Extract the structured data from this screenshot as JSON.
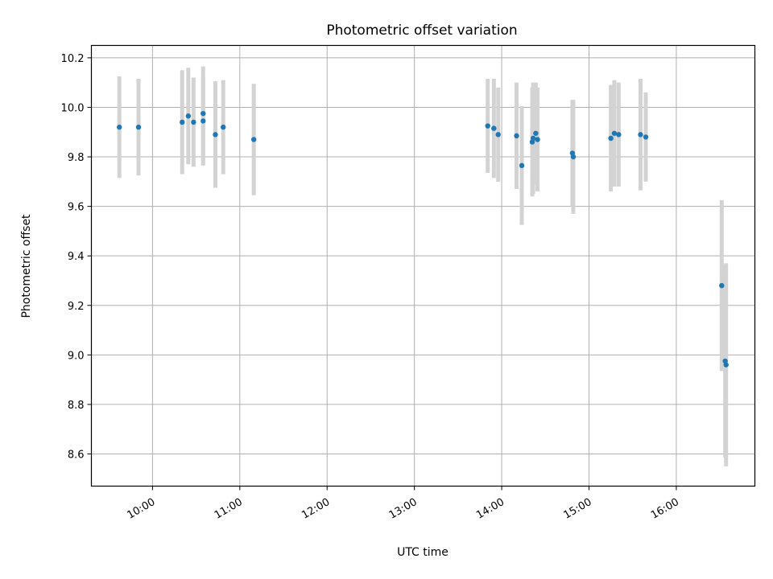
{
  "chart_data": {
    "type": "scatter",
    "title": "Photometric offset variation",
    "xlabel": "UTC time",
    "ylabel": "Photometric offset",
    "grid": true,
    "xlim": [
      9.3,
      16.9
    ],
    "ylim": [
      8.47,
      10.25
    ],
    "x_ticks": [
      {
        "value": 10,
        "label": "10:00"
      },
      {
        "value": 11,
        "label": "11:00"
      },
      {
        "value": 12,
        "label": "12:00"
      },
      {
        "value": 13,
        "label": "13:00"
      },
      {
        "value": 14,
        "label": "14:00"
      },
      {
        "value": 15,
        "label": "15:00"
      },
      {
        "value": 16,
        "label": "16:00"
      }
    ],
    "y_ticks": [
      {
        "value": 8.6,
        "label": "8.6"
      },
      {
        "value": 8.8,
        "label": "8.8"
      },
      {
        "value": 9.0,
        "label": "9.0"
      },
      {
        "value": 9.2,
        "label": "9.2"
      },
      {
        "value": 9.4,
        "label": "9.4"
      },
      {
        "value": 9.6,
        "label": "9.6"
      },
      {
        "value": 9.8,
        "label": "9.8"
      },
      {
        "value": 10.0,
        "label": "10.0"
      },
      {
        "value": 10.2,
        "label": "10.2"
      }
    ],
    "x_units": "hours UTC",
    "colors": {
      "point": "#1f77b4",
      "errorbar": "#d3d3d3",
      "grid": "#b0b0b0",
      "axes": "#000000"
    },
    "points": [
      {
        "x": 9.62,
        "y": 9.92,
        "err": 0.205
      },
      {
        "x": 9.84,
        "y": 9.92,
        "err": 0.195
      },
      {
        "x": 10.34,
        "y": 9.94,
        "err": 0.21
      },
      {
        "x": 10.41,
        "y": 9.965,
        "err": 0.195
      },
      {
        "x": 10.47,
        "y": 9.94,
        "err": 0.18
      },
      {
        "x": 10.58,
        "y": 9.975,
        "err": 0.19
      },
      {
        "x": 10.58,
        "y": 9.945,
        "err": 0.18
      },
      {
        "x": 10.72,
        "y": 9.89,
        "err": 0.215
      },
      {
        "x": 10.81,
        "y": 9.92,
        "err": 0.19
      },
      {
        "x": 11.16,
        "y": 9.87,
        "err": 0.225
      },
      {
        "x": 13.84,
        "y": 9.925,
        "err": 0.19
      },
      {
        "x": 13.91,
        "y": 9.915,
        "err": 0.2
      },
      {
        "x": 13.96,
        "y": 9.89,
        "err": 0.19
      },
      {
        "x": 14.17,
        "y": 9.885,
        "err": 0.215
      },
      {
        "x": 14.23,
        "y": 9.765,
        "err": 0.24
      },
      {
        "x": 14.35,
        "y": 9.86,
        "err": 0.22
      },
      {
        "x": 14.36,
        "y": 9.875,
        "err": 0.225
      },
      {
        "x": 14.39,
        "y": 9.895,
        "err": 0.205
      },
      {
        "x": 14.41,
        "y": 9.87,
        "err": 0.21
      },
      {
        "x": 14.81,
        "y": 9.815,
        "err": 0.215
      },
      {
        "x": 14.82,
        "y": 9.8,
        "err": 0.23
      },
      {
        "x": 15.25,
        "y": 9.875,
        "err": 0.215
      },
      {
        "x": 15.29,
        "y": 9.895,
        "err": 0.215
      },
      {
        "x": 15.34,
        "y": 9.89,
        "err": 0.21
      },
      {
        "x": 15.59,
        "y": 9.89,
        "err": 0.225
      },
      {
        "x": 15.65,
        "y": 9.88,
        "err": 0.18
      },
      {
        "x": 16.52,
        "y": 9.28,
        "err": 0.345
      },
      {
        "x": 16.56,
        "y": 8.975,
        "err": 0.39
      },
      {
        "x": 16.57,
        "y": 8.96,
        "err": 0.41
      }
    ]
  }
}
